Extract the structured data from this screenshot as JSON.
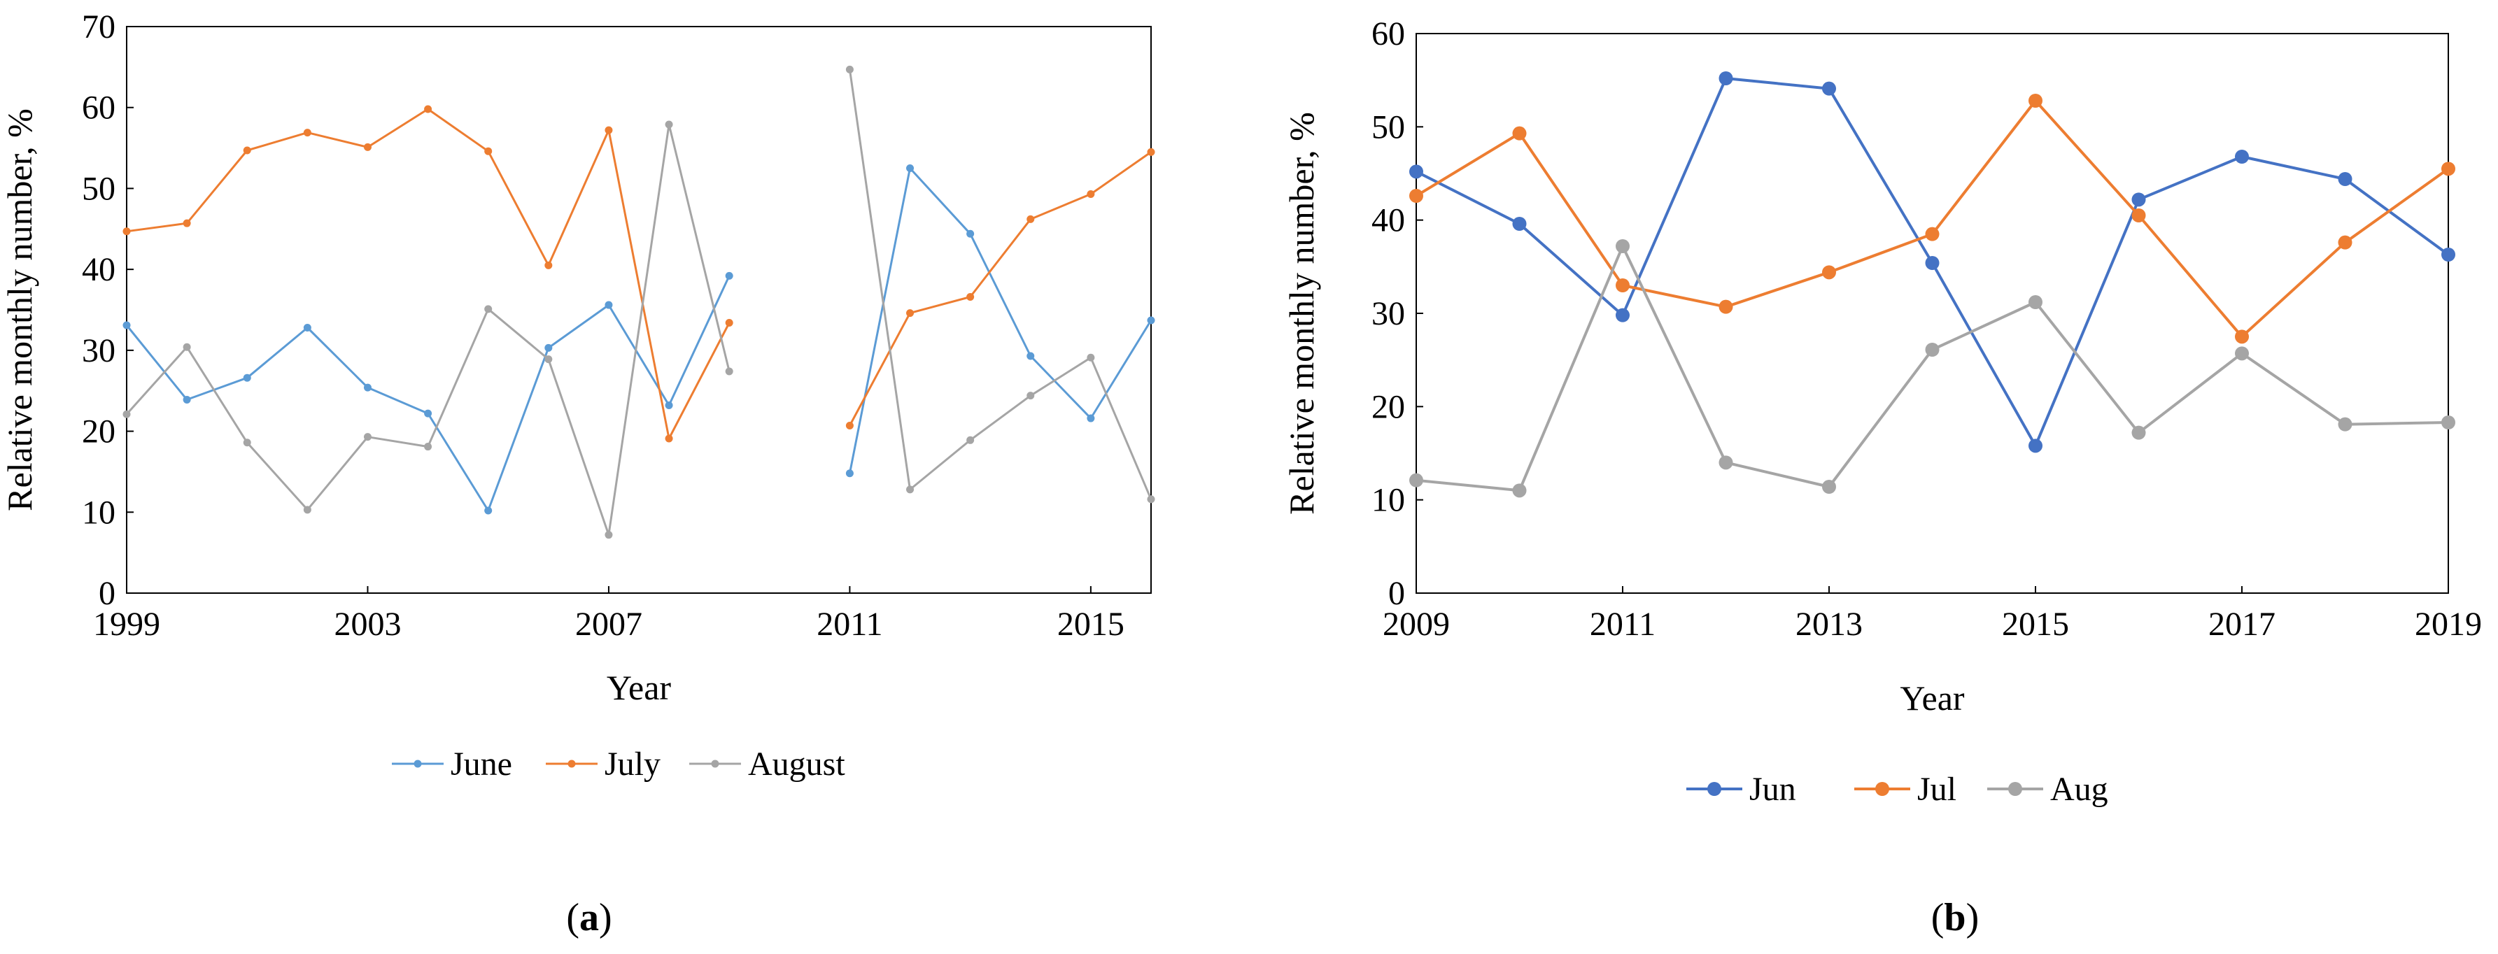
{
  "chart_data": [
    {
      "type": "line",
      "title": "",
      "caption": "(a)",
      "caption_paren_open": "(",
      "caption_letter": "a",
      "caption_paren_close": ")",
      "xlabel": "Year",
      "ylabel": "Relative monthly number, %",
      "xlim": [
        1999,
        2016
      ],
      "ylim": [
        0,
        70
      ],
      "x_ticks": [
        1999,
        2003,
        2007,
        2011,
        2015
      ],
      "y_ticks": [
        0,
        10,
        20,
        30,
        40,
        50,
        60,
        70
      ],
      "x": [
        1999,
        2000,
        2001,
        2002,
        2003,
        2004,
        2005,
        2006,
        2007,
        2008,
        2009,
        2011,
        2012,
        2013,
        2014,
        2015,
        2016
      ],
      "series": [
        {
          "name": "June",
          "color": "#5B9BD5",
          "marker": "small",
          "values": [
            33.1,
            23.9,
            26.6,
            32.8,
            25.4,
            22.2,
            10.2,
            30.3,
            35.6,
            23.2,
            39.2,
            14.8,
            52.5,
            44.4,
            29.3,
            21.6,
            33.7
          ]
        },
        {
          "name": "July",
          "color": "#ED7D31",
          "marker": "small",
          "values": [
            44.7,
            45.7,
            54.7,
            56.9,
            55.1,
            59.8,
            54.6,
            40.5,
            57.2,
            19.1,
            33.4,
            20.7,
            34.6,
            36.6,
            46.2,
            49.3,
            54.5
          ]
        },
        {
          "name": "August",
          "color": "#A5A5A5",
          "marker": "small",
          "values": [
            22.1,
            30.4,
            18.6,
            10.3,
            19.3,
            18.1,
            35.1,
            28.9,
            7.2,
            57.9,
            27.4,
            64.7,
            12.8,
            18.9,
            24.4,
            29.1,
            11.6
          ]
        }
      ],
      "legend_position": "bottom"
    },
    {
      "type": "line",
      "title": "",
      "caption": "(b)",
      "caption_paren_open": "(",
      "caption_letter": "b",
      "caption_paren_close": ")",
      "xlabel": "Year",
      "ylabel": "Relative monthly number, %",
      "xlim": [
        2009,
        2019
      ],
      "ylim": [
        0,
        60
      ],
      "x_ticks": [
        2009,
        2011,
        2013,
        2015,
        2017,
        2019
      ],
      "y_ticks": [
        0,
        10,
        20,
        30,
        40,
        50,
        60
      ],
      "x": [
        2009,
        2010,
        2011,
        2012,
        2013,
        2014,
        2015,
        2016,
        2017,
        2018,
        2019
      ],
      "series": [
        {
          "name": "Jun",
          "color": "#4472C4",
          "marker": "large",
          "values": [
            45.2,
            39.6,
            29.8,
            55.2,
            54.1,
            35.4,
            15.8,
            42.2,
            46.8,
            44.4,
            36.3
          ]
        },
        {
          "name": "Jul",
          "color": "#ED7D31",
          "marker": "large",
          "values": [
            42.6,
            49.3,
            33.0,
            30.7,
            34.4,
            38.5,
            52.8,
            40.5,
            27.5,
            37.6,
            45.5
          ]
        },
        {
          "name": "Aug",
          "color": "#A5A5A5",
          "marker": "large",
          "values": [
            12.1,
            11.0,
            37.2,
            14.0,
            11.4,
            26.1,
            31.2,
            17.2,
            25.7,
            18.1,
            18.3
          ]
        }
      ],
      "legend_position": "bottom"
    }
  ]
}
